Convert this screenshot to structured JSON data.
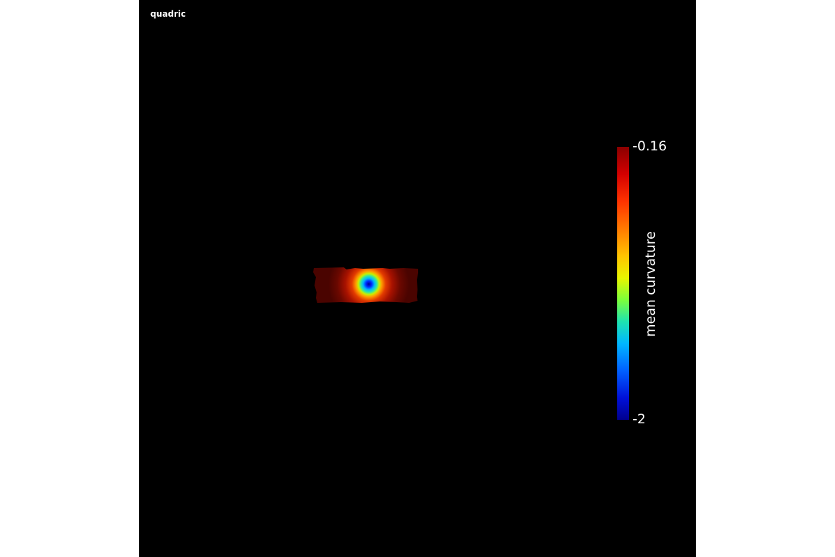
{
  "viewport": {
    "background_color": "#000000",
    "title": "quadric"
  },
  "colorbar": {
    "max_label": "-0.16",
    "min_label": "-2",
    "title": "mean curvature",
    "colormap": "jet"
  }
}
